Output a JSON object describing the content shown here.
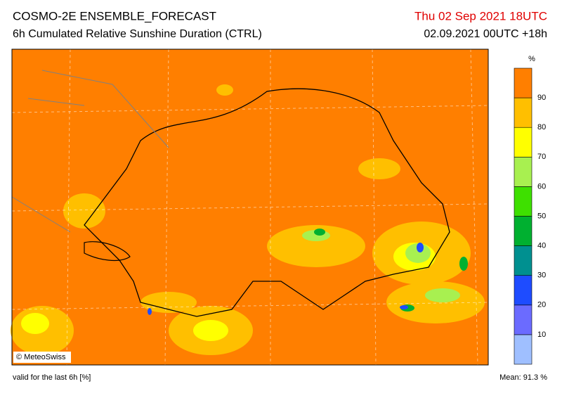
{
  "header": {
    "title": "COSMO-2E ENSEMBLE_FORECAST",
    "subtitle": "6h Cumulated Relative Sunshine Duration (CTRL)",
    "valid_time": "Thu 02 Sep 2021 18UTC",
    "run": "02.09.2021 00UTC +18h"
  },
  "map": {
    "copyright": "© MeteoSwiss",
    "background": "#ff7f00"
  },
  "legend": {
    "unit": "%",
    "ticks": [
      10,
      20,
      30,
      40,
      50,
      60,
      70,
      80,
      90
    ],
    "colors": [
      "#9fbfff",
      "#6b6bff",
      "#1e4cff",
      "#009090",
      "#00b030",
      "#3ee000",
      "#a8f050",
      "#ffff00",
      "#ffbf00",
      "#ff7f00"
    ]
  },
  "footer": {
    "validity": "valid for the last 6h [%]",
    "mean": "Mean:  91.3 %"
  }
}
